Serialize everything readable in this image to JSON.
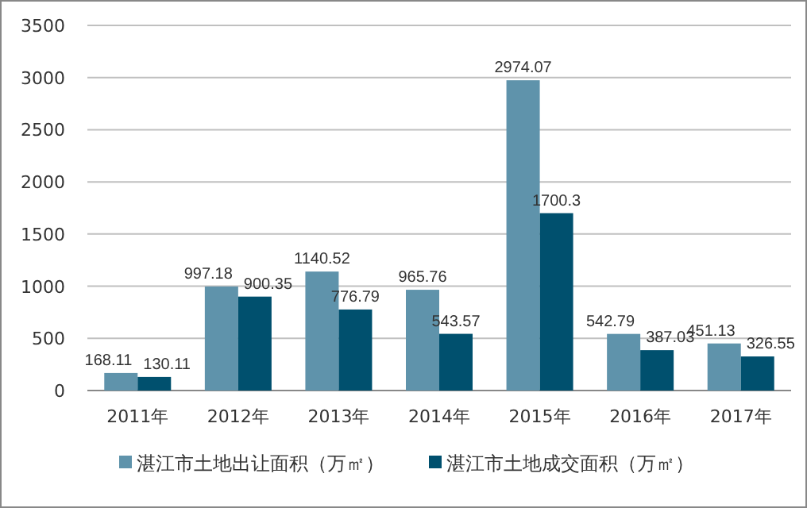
{
  "chart_data": {
    "type": "bar",
    "categories": [
      "2011年",
      "2012年",
      "2013年",
      "2014年",
      "2015年",
      "2016年",
      "2017年"
    ],
    "series": [
      {
        "name": "湛江市土地出让面积（万㎡）",
        "color": "#5f93ab",
        "values": [
          168.11,
          997.18,
          1140.52,
          965.76,
          2974.07,
          542.79,
          451.13
        ]
      },
      {
        "name": "湛江市土地成交面积（万㎡）",
        "color": "#00506e",
        "values": [
          130.11,
          900.35,
          776.79,
          543.57,
          1700.3,
          387.03,
          326.55
        ]
      }
    ],
    "ylim": [
      0,
      3500
    ],
    "yticks": [
      0,
      500,
      1000,
      1500,
      2000,
      2500,
      3000,
      3500
    ],
    "grid": "y",
    "legend": "bottom",
    "data_labels": true
  }
}
